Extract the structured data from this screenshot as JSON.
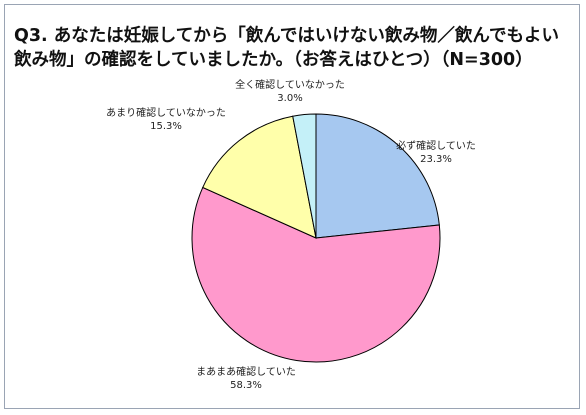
{
  "chart_data": {
    "type": "pie",
    "title": "Q3. あなたは妊娠してから「飲んではいけない飲み物／飲んでもよい飲み物」の確認をしていましたか。（お答えはひとつ）（N=300）",
    "start_angle_deg": 0,
    "direction": "clockwise",
    "slices": [
      {
        "label": "必ず確認していた",
        "value": 23.3,
        "value_text": "23.3%",
        "color": "#A6C8F0"
      },
      {
        "label": "まあまあ確認していた",
        "value": 58.3,
        "value_text": "58.3%",
        "color": "#FF99CC"
      },
      {
        "label": "あまり確認していなかった",
        "value": 15.3,
        "value_text": "15.3%",
        "color": "#FFFFAA"
      },
      {
        "label": "全く確認していなかった",
        "value": 3.0,
        "value_text": "3.0%",
        "color": "#C4F0F8"
      }
    ]
  }
}
